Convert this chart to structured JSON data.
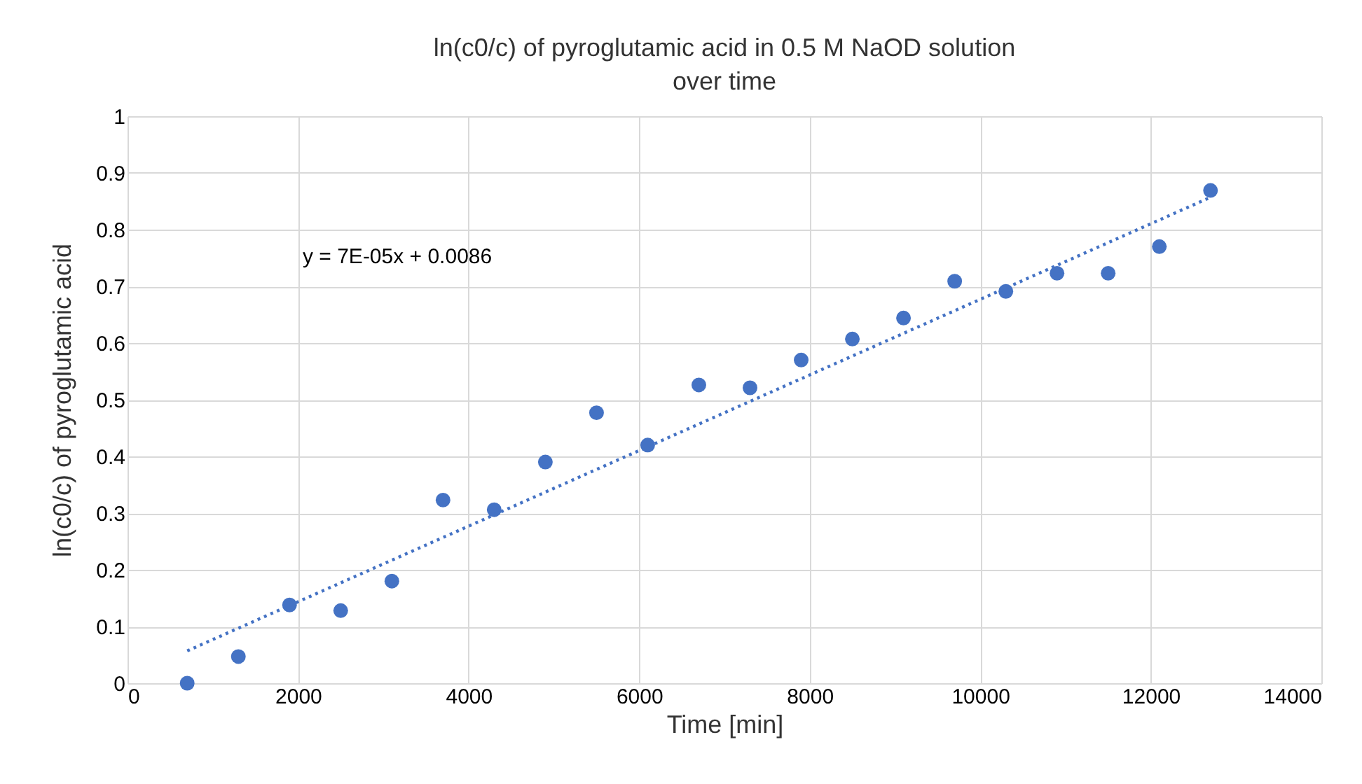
{
  "chart_data": {
    "type": "scatter",
    "title": "ln(c0/c) of pyroglutamic acid in 0.5 M NaOD solution over time",
    "xlabel": "Time [min]",
    "ylabel": "ln(c0/c) of pyroglutamic acid",
    "x": [
      700,
      1300,
      1900,
      2500,
      3100,
      3700,
      4300,
      4900,
      5500,
      6100,
      6700,
      7300,
      7900,
      8500,
      9100,
      9700,
      10300,
      10900,
      11500,
      12100,
      12700
    ],
    "series": [
      {
        "color": "#4472c4",
        "marker": "circle",
        "values": [
          0,
          0.047,
          0.138,
          0.128,
          0.18,
          0.323,
          0.306,
          0.39,
          0.477,
          0.42,
          0.526,
          0.521,
          0.57,
          0.607,
          0.644,
          0.709,
          0.691,
          0.723,
          0.723,
          0.77,
          0.869
        ]
      },
      {
        "type": "line",
        "color": "#4472c4",
        "line_style": "dotted",
        "x": [
          700,
          12700
        ],
        "values": [
          0.057,
          0.857
        ]
      }
    ],
    "annotations": [
      "y = 7E-05x + 0.0086"
    ],
    "xlim": [
      0,
      14000
    ],
    "xticks": [
      0,
      2000,
      4000,
      6000,
      8000,
      10000,
      12000,
      14000
    ],
    "ylim": [
      0,
      1
    ],
    "yticks": [
      0,
      0.1,
      0.2,
      0.3,
      0.4,
      0.5,
      0.6,
      0.7,
      0.8,
      0.9,
      1
    ],
    "grid": true
  }
}
